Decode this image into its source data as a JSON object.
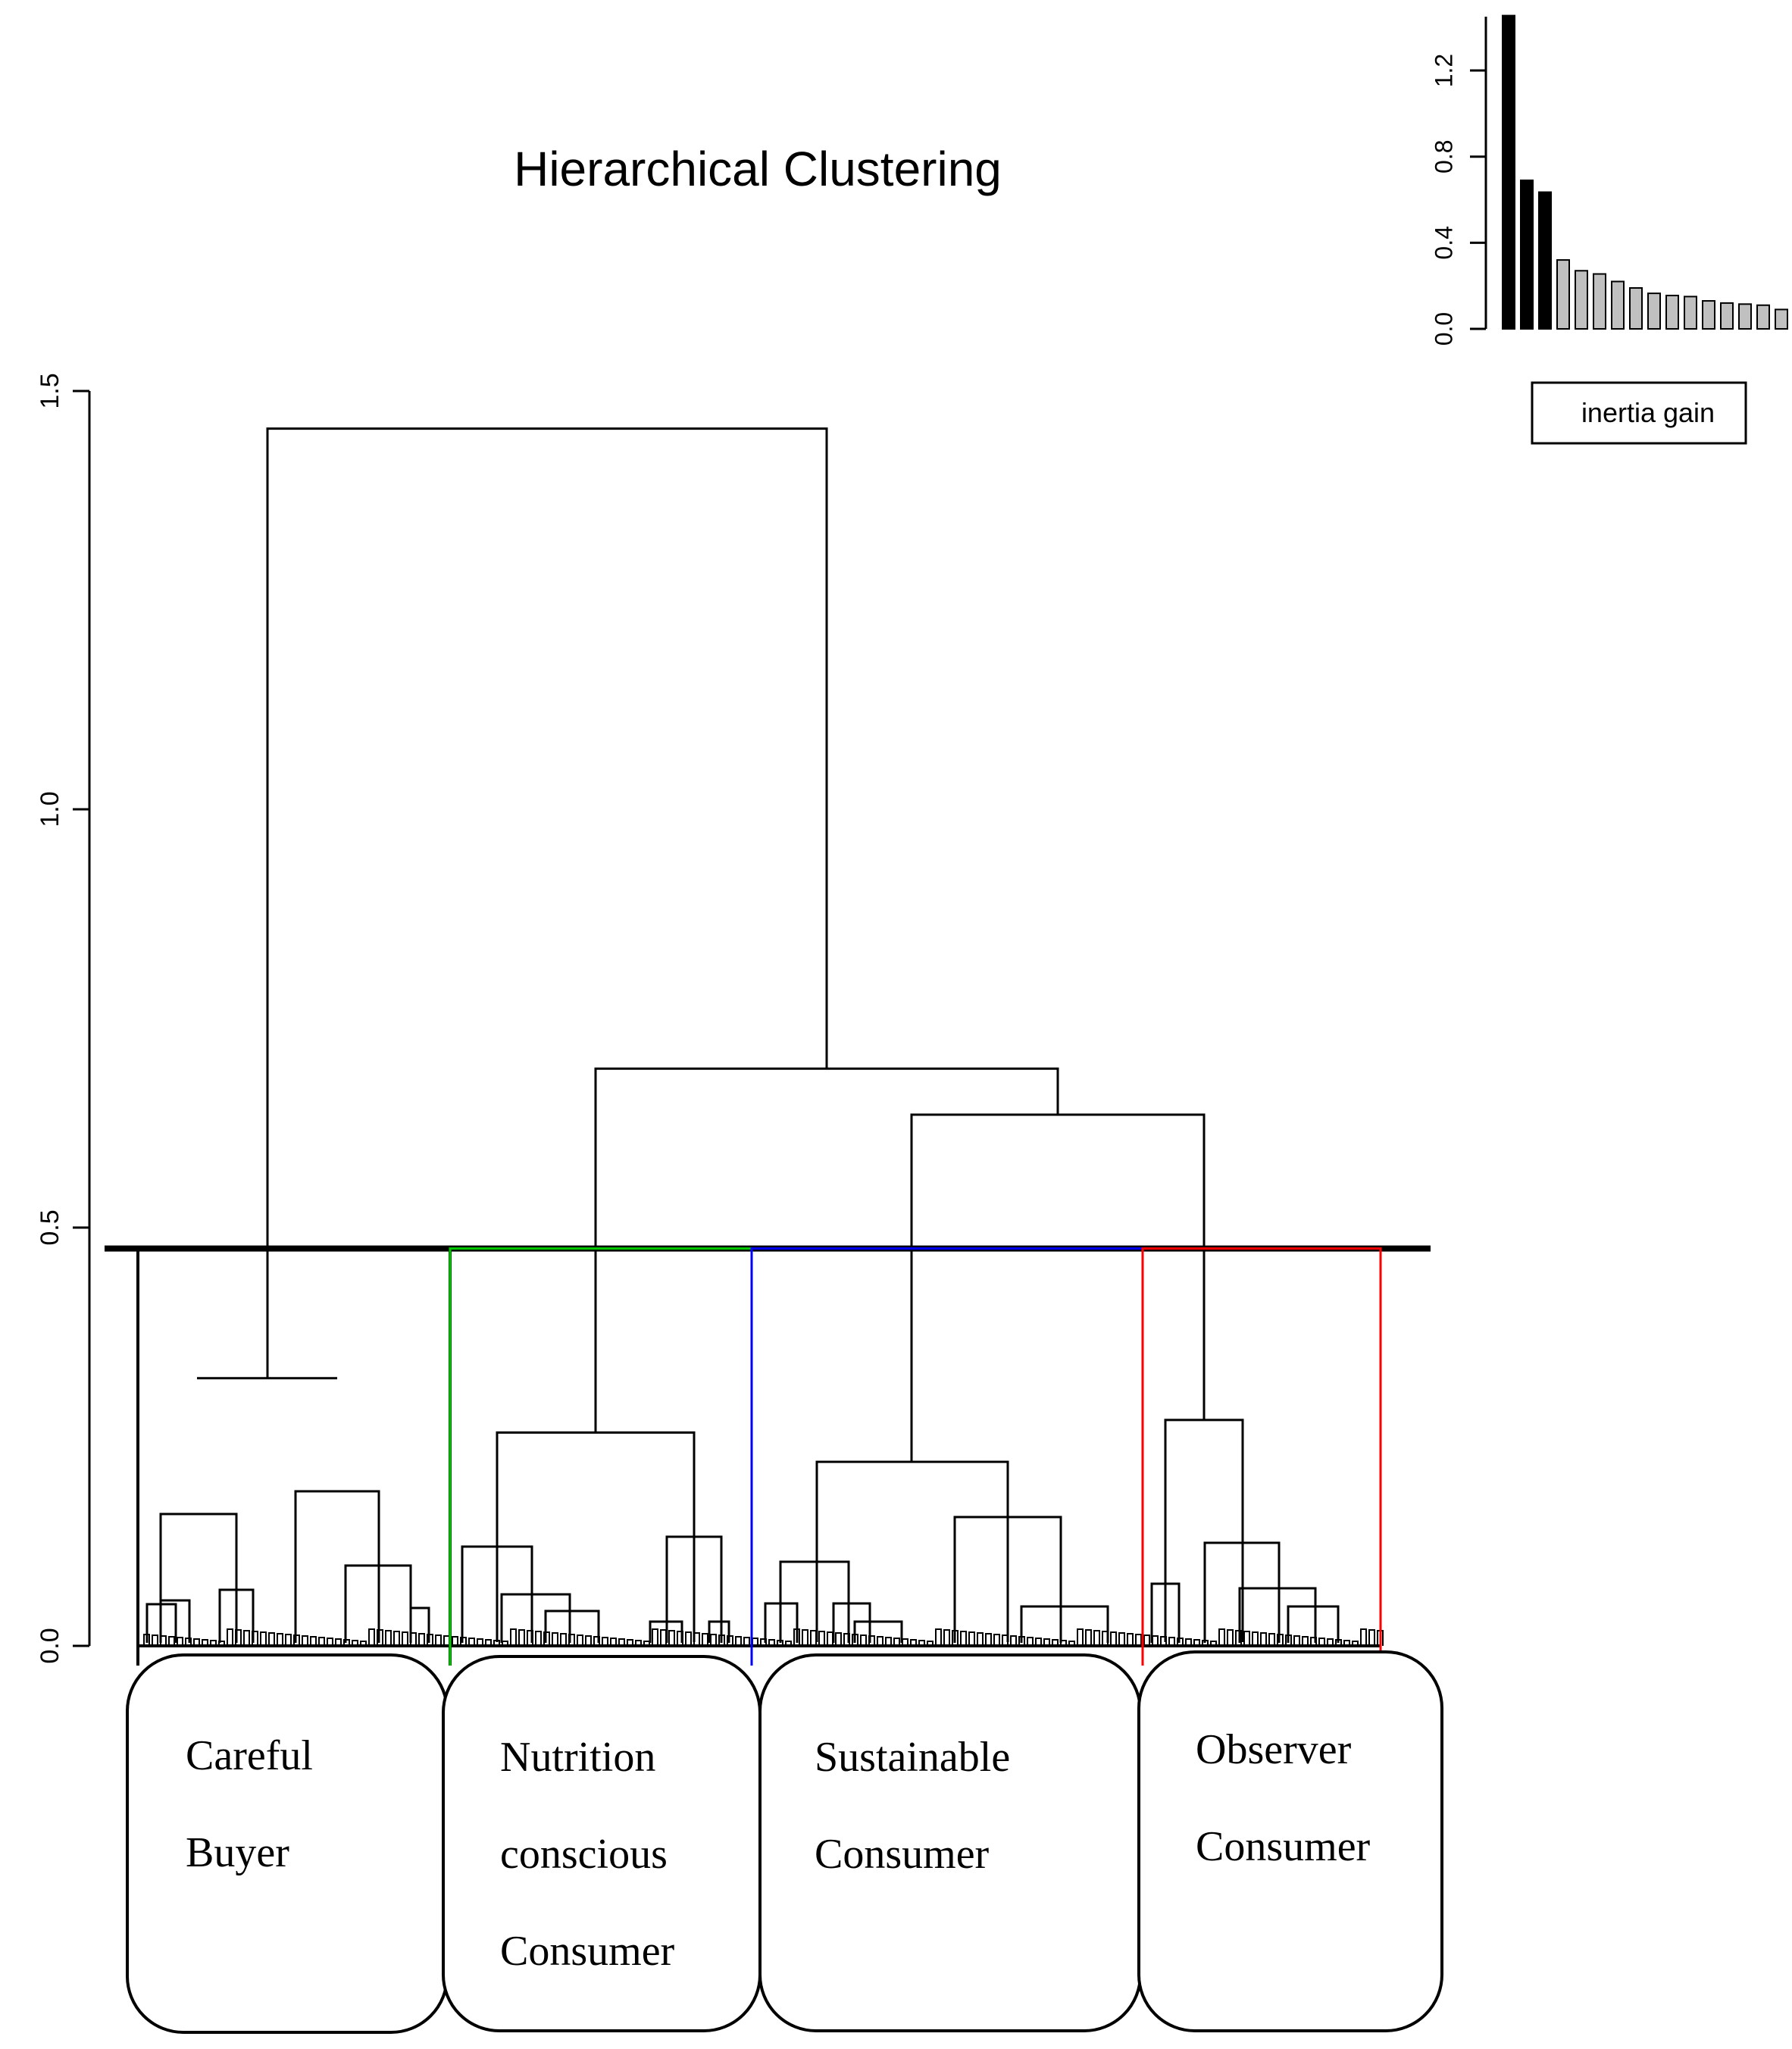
{
  "chart_data": [
    {
      "type": "dendrogram",
      "title": "Hierarchical Clustering",
      "xlabel": "",
      "ylabel": "",
      "ylim": [
        0,
        1.5
      ],
      "y_ticks": [
        0.0,
        0.5,
        1.0,
        1.5
      ],
      "y_tick_labels": [
        "0.0",
        "0.5",
        "1.0",
        "1.5"
      ],
      "cut_height": 0.475,
      "merges": [
        {
          "name": "root",
          "height": 1.455
        },
        {
          "name": "merge-nutrition-rest",
          "height": 0.69
        },
        {
          "name": "merge-sustainable-observer",
          "height": 0.635
        },
        {
          "name": "careful-buyer-top",
          "height": 0.32
        },
        {
          "name": "observer-top",
          "height": 0.27
        },
        {
          "name": "nutrition-top",
          "height": 0.255
        },
        {
          "name": "sustainable-top",
          "height": 0.22
        }
      ],
      "clusters": [
        {
          "id": 1,
          "label_lines": [
            "Careful",
            "Buyer"
          ],
          "color": "#000000"
        },
        {
          "id": 2,
          "label_lines": [
            "Nutrition",
            "conscious",
            "Consumer"
          ],
          "color": "#00cc00"
        },
        {
          "id": 3,
          "label_lines": [
            "Sustainable",
            "Consumer"
          ],
          "color": "#0000ff"
        },
        {
          "id": 4,
          "label_lines": [
            "Observer",
            "Consumer"
          ],
          "color": "#ff0000"
        }
      ]
    },
    {
      "type": "bar",
      "title": "",
      "legend": "inertia gain",
      "ylim": [
        0,
        1.45
      ],
      "y_ticks": [
        0.0,
        0.4,
        0.8,
        1.2
      ],
      "y_tick_labels": [
        "0.0",
        "0.4",
        "0.8",
        "1.2"
      ],
      "values": [
        1.455,
        0.69,
        0.635,
        0.32,
        0.27,
        0.255,
        0.22,
        0.19,
        0.165,
        0.155,
        0.15,
        0.13,
        0.12,
        0.115,
        0.11,
        0.09
      ],
      "highlighted_count": 3,
      "colors": {
        "highlight": "#000000",
        "other": "#c0c0c0"
      }
    }
  ]
}
